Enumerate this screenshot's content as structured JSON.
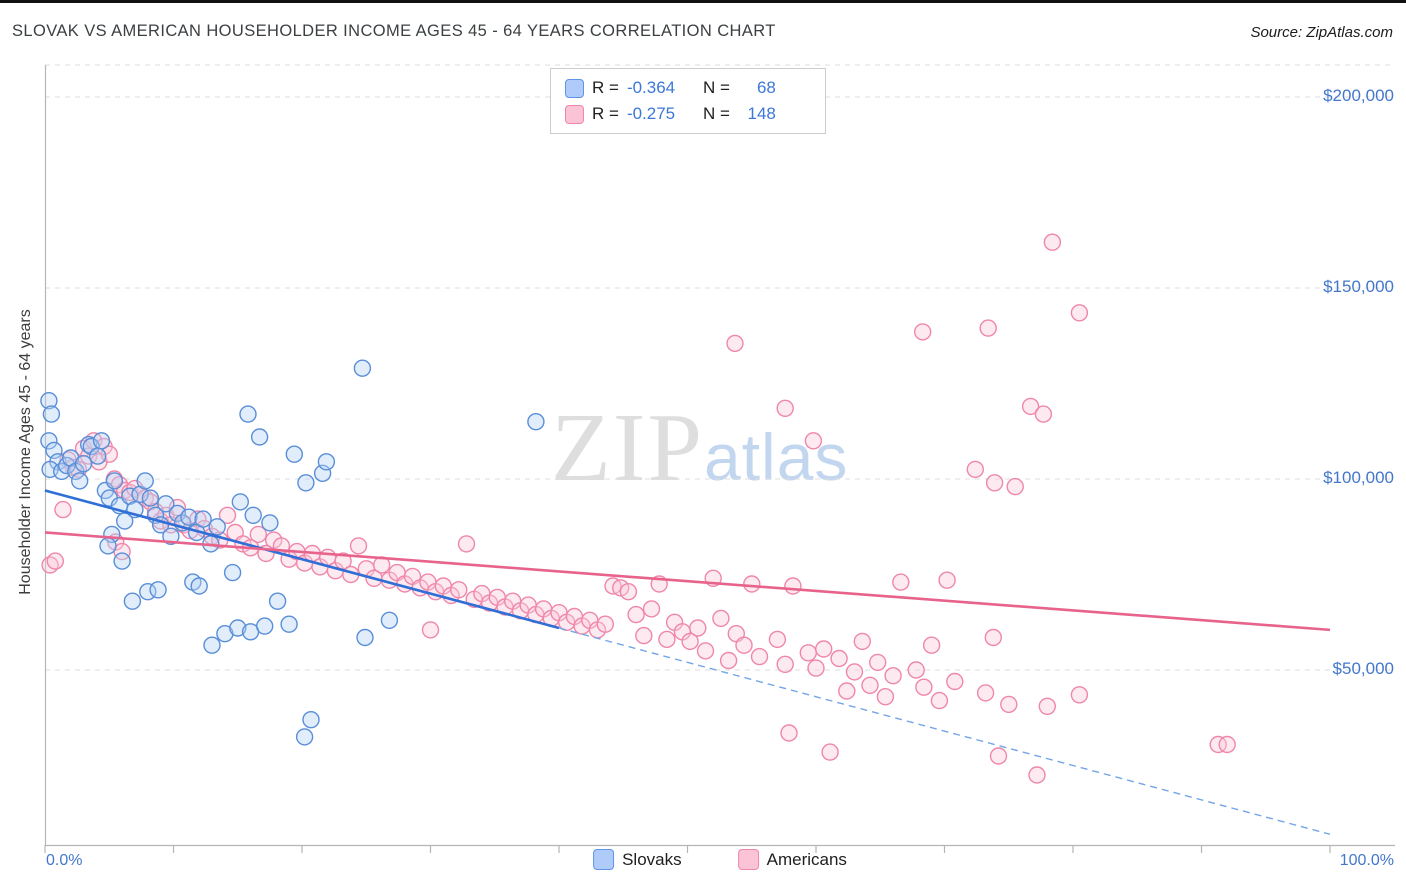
{
  "header": {
    "title": "SLOVAK VS AMERICAN HOUSEHOLDER INCOME AGES 45 - 64 YEARS CORRELATION CHART",
    "source": "Source: ZipAtlas.com"
  },
  "watermark": {
    "zip": "ZIP",
    "atlas": "atlas"
  },
  "legend_box": {
    "rows": [
      {
        "series": "Slovaks",
        "r_label": "R =",
        "r_value": "-0.364",
        "n_label": "N =",
        "n_value": "68"
      },
      {
        "series": "Americans",
        "r_label": "R =",
        "r_value": "-0.275",
        "n_label": "N =",
        "n_value": "148"
      }
    ]
  },
  "bottom_legend": {
    "items": [
      {
        "label": "Slovaks"
      },
      {
        "label": "Americans"
      }
    ]
  },
  "colors": {
    "slovak_fill": "#b3d1f5",
    "slovak_stroke": "#5a8fd8",
    "slovak_trend": "#2f6fd6",
    "slovak_trend_dashed": "#74a5e8",
    "american_fill": "#fbc9da",
    "american_stroke": "#ef87ab",
    "american_trend": "#e8638c",
    "axis_label_blue": "#4377cc",
    "legend_value_blue": "#3b78d8",
    "grid_gray": "#dedede"
  },
  "chart_data": {
    "type": "scatter",
    "title": "SLOVAK VS AMERICAN HOUSEHOLDER INCOME AGES 45 - 64 YEARS CORRELATION CHART",
    "xlabel": "",
    "ylabel": "Householder Income Ages 45 - 64 years",
    "xlim": [
      0,
      105
    ],
    "ylim": [
      0,
      210000
    ],
    "grid": "horizontal-dashed",
    "legend_position": "top-center and bottom-center",
    "x_axis": {
      "min": 0,
      "max": 100,
      "unit": "%",
      "min_label": "0.0%",
      "max_label": "100.0%"
    },
    "y_ticks": [
      {
        "label": "$200,000",
        "value": 200000
      },
      {
        "label": "$150,000",
        "value": 150000
      },
      {
        "label": "$100,000",
        "value": 100000
      },
      {
        "label": "$50,000",
        "value": 50000
      }
    ],
    "series": [
      {
        "name": "Slovaks",
        "r": -0.364,
        "n": 68,
        "color": "#5a8fd8",
        "fill": "#b3d1f5",
        "points": [
          [
            0.3,
            120500
          ],
          [
            0.5,
            117000
          ],
          [
            0.3,
            110000
          ],
          [
            0.7,
            107500
          ],
          [
            1.0,
            104500
          ],
          [
            0.4,
            102500
          ],
          [
            1.3,
            102000
          ],
          [
            1.7,
            103500
          ],
          [
            2.0,
            105500
          ],
          [
            2.4,
            102000
          ],
          [
            2.7,
            99500
          ],
          [
            3.0,
            104000
          ],
          [
            3.4,
            109000
          ],
          [
            3.6,
            108500
          ],
          [
            4.1,
            106000
          ],
          [
            4.4,
            110000
          ],
          [
            4.7,
            97000
          ],
          [
            5.0,
            95000
          ],
          [
            5.4,
            99500
          ],
          [
            5.8,
            93000
          ],
          [
            6.2,
            89000
          ],
          [
            6.6,
            95500
          ],
          [
            5.2,
            85500
          ],
          [
            4.9,
            82500
          ],
          [
            6.0,
            78500
          ],
          [
            7.0,
            92000
          ],
          [
            7.4,
            96000
          ],
          [
            7.8,
            99500
          ],
          [
            8.2,
            95000
          ],
          [
            8.6,
            90500
          ],
          [
            9.0,
            88000
          ],
          [
            9.4,
            93500
          ],
          [
            9.8,
            85000
          ],
          [
            10.3,
            91000
          ],
          [
            10.7,
            88500
          ],
          [
            11.2,
            90000
          ],
          [
            11.8,
            86000
          ],
          [
            12.3,
            89500
          ],
          [
            12.9,
            83000
          ],
          [
            13.4,
            87500
          ],
          [
            6.8,
            68000
          ],
          [
            8.0,
            70500
          ],
          [
            8.8,
            71000
          ],
          [
            13.0,
            56500
          ],
          [
            14.0,
            59500
          ],
          [
            15.0,
            61000
          ],
          [
            16.0,
            60000
          ],
          [
            17.1,
            61500
          ],
          [
            11.5,
            73000
          ],
          [
            12.0,
            72000
          ],
          [
            14.6,
            75500
          ],
          [
            15.8,
            117000
          ],
          [
            16.7,
            111000
          ],
          [
            15.2,
            94000
          ],
          [
            16.2,
            90500
          ],
          [
            17.5,
            88500
          ],
          [
            18.1,
            68000
          ],
          [
            19.0,
            62000
          ],
          [
            20.7,
            37000
          ],
          [
            20.2,
            32500
          ],
          [
            21.6,
            101500
          ],
          [
            21.9,
            104500
          ],
          [
            19.4,
            106500
          ],
          [
            20.3,
            99000
          ],
          [
            24.7,
            129000
          ],
          [
            26.8,
            63000
          ],
          [
            24.9,
            58500
          ],
          [
            38.2,
            115000
          ]
        ]
      },
      {
        "name": "Americans",
        "r": -0.275,
        "n": 148,
        "color": "#ef87ab",
        "fill": "#fbc9da",
        "points": [
          [
            0.4,
            77500
          ],
          [
            0.8,
            78500
          ],
          [
            1.4,
            92000
          ],
          [
            1.8,
            105000
          ],
          [
            2.2,
            103000
          ],
          [
            2.6,
            102500
          ],
          [
            3.0,
            108000
          ],
          [
            3.4,
            106000
          ],
          [
            3.8,
            110000
          ],
          [
            4.2,
            104500
          ],
          [
            4.6,
            108500
          ],
          [
            5.0,
            106500
          ],
          [
            5.4,
            100000
          ],
          [
            5.8,
            98500
          ],
          [
            6.2,
            97000
          ],
          [
            6.6,
            96500
          ],
          [
            7.0,
            97500
          ],
          [
            7.4,
            96000
          ],
          [
            7.8,
            95000
          ],
          [
            8.2,
            94000
          ],
          [
            8.6,
            91500
          ],
          [
            9.0,
            89000
          ],
          [
            9.4,
            90500
          ],
          [
            9.8,
            88000
          ],
          [
            5.5,
            83500
          ],
          [
            6.0,
            81000
          ],
          [
            10.3,
            92500
          ],
          [
            10.8,
            88000
          ],
          [
            11.3,
            86500
          ],
          [
            11.9,
            89500
          ],
          [
            12.4,
            87000
          ],
          [
            13.0,
            85000
          ],
          [
            13.6,
            84000
          ],
          [
            14.2,
            90500
          ],
          [
            14.8,
            86000
          ],
          [
            15.4,
            83000
          ],
          [
            16.0,
            82000
          ],
          [
            16.6,
            85500
          ],
          [
            17.2,
            80500
          ],
          [
            17.8,
            84000
          ],
          [
            18.4,
            82500
          ],
          [
            19.0,
            79000
          ],
          [
            19.6,
            81000
          ],
          [
            20.2,
            78000
          ],
          [
            20.8,
            80500
          ],
          [
            21.4,
            77000
          ],
          [
            22.0,
            79500
          ],
          [
            22.6,
            76000
          ],
          [
            23.2,
            78500
          ],
          [
            23.8,
            75000
          ],
          [
            24.4,
            82500
          ],
          [
            25.0,
            76500
          ],
          [
            25.6,
            74000
          ],
          [
            26.2,
            77500
          ],
          [
            26.8,
            73500
          ],
          [
            27.4,
            75500
          ],
          [
            28.0,
            72500
          ],
          [
            28.6,
            74500
          ],
          [
            29.2,
            71500
          ],
          [
            29.8,
            73000
          ],
          [
            30.4,
            70500
          ],
          [
            31.0,
            72000
          ],
          [
            31.6,
            69500
          ],
          [
            32.2,
            71000
          ],
          [
            32.8,
            83000
          ],
          [
            33.4,
            68500
          ],
          [
            34.0,
            70000
          ],
          [
            34.6,
            67500
          ],
          [
            35.2,
            69000
          ],
          [
            35.8,
            66500
          ],
          [
            36.4,
            68000
          ],
          [
            37.0,
            65500
          ],
          [
            37.6,
            67000
          ],
          [
            38.2,
            64500
          ],
          [
            38.8,
            66000
          ],
          [
            39.4,
            63500
          ],
          [
            30.0,
            60500
          ],
          [
            40.0,
            65000
          ],
          [
            40.6,
            62500
          ],
          [
            41.2,
            64000
          ],
          [
            41.8,
            61500
          ],
          [
            42.4,
            63000
          ],
          [
            43.0,
            60500
          ],
          [
            43.6,
            62000
          ],
          [
            44.2,
            72000
          ],
          [
            44.8,
            71500
          ],
          [
            45.4,
            70500
          ],
          [
            46.0,
            64500
          ],
          [
            46.6,
            59000
          ],
          [
            47.2,
            66000
          ],
          [
            47.8,
            72500
          ],
          [
            48.4,
            58000
          ],
          [
            49.0,
            62500
          ],
          [
            49.6,
            60000
          ],
          [
            50.2,
            57500
          ],
          [
            50.8,
            61000
          ],
          [
            51.4,
            55000
          ],
          [
            52.0,
            74000
          ],
          [
            52.6,
            63500
          ],
          [
            53.7,
            135500
          ],
          [
            53.2,
            52500
          ],
          [
            53.8,
            59500
          ],
          [
            54.4,
            56500
          ],
          [
            55.0,
            72500
          ],
          [
            55.6,
            53500
          ],
          [
            57.6,
            118500
          ],
          [
            57.9,
            33500
          ],
          [
            57.0,
            58000
          ],
          [
            57.6,
            51500
          ],
          [
            58.2,
            72000
          ],
          [
            59.8,
            110000
          ],
          [
            59.4,
            54500
          ],
          [
            60.0,
            50500
          ],
          [
            60.6,
            55500
          ],
          [
            61.1,
            28500
          ],
          [
            61.8,
            53000
          ],
          [
            62.4,
            44500
          ],
          [
            63.0,
            49500
          ],
          [
            63.6,
            57500
          ],
          [
            64.2,
            46000
          ],
          [
            64.8,
            52000
          ],
          [
            65.4,
            43000
          ],
          [
            66.0,
            48500
          ],
          [
            66.6,
            73000
          ],
          [
            68.3,
            138500
          ],
          [
            67.8,
            50000
          ],
          [
            68.4,
            45500
          ],
          [
            69.0,
            56500
          ],
          [
            69.6,
            42000
          ],
          [
            70.2,
            73500
          ],
          [
            70.8,
            47000
          ],
          [
            72.4,
            102500
          ],
          [
            73.4,
            139500
          ],
          [
            73.9,
            99000
          ],
          [
            73.2,
            44000
          ],
          [
            73.8,
            58500
          ],
          [
            75.5,
            98000
          ],
          [
            75.0,
            41000
          ],
          [
            76.7,
            119000
          ],
          [
            77.7,
            117000
          ],
          [
            78.4,
            162000
          ],
          [
            78.0,
            40500
          ],
          [
            80.5,
            143500
          ],
          [
            74.2,
            27500
          ],
          [
            77.2,
            22500
          ],
          [
            80.5,
            43500
          ],
          [
            91.3,
            30500
          ],
          [
            92.0,
            30500
          ]
        ]
      }
    ],
    "trend_lines": [
      {
        "series": "Slovaks",
        "color": "#2f6fd6",
        "dash_color": "#74a5e8",
        "solid_from": [
          0,
          97000
        ],
        "solid_to": [
          40,
          61000
        ],
        "dashed_to": [
          100,
          7000
        ]
      },
      {
        "series": "Americans",
        "color": "#e8638c",
        "solid_from": [
          0,
          86000
        ],
        "solid_to": [
          100,
          60500
        ]
      }
    ]
  }
}
